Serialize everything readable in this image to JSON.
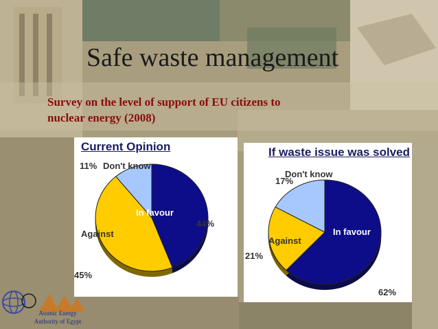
{
  "slide": {
    "title": "Safe waste management",
    "subtitle_line1": "Survey on the level of support of EU citizens to",
    "subtitle_line2": "nuclear energy (2008)",
    "logo_line1": "Atomic Energy",
    "logo_line2": "Authority of Egypt"
  },
  "colors": {
    "in_favour": "#0d0d8a",
    "against": "#ffcc00",
    "dont_know": "#a6c8ff"
  },
  "chart_data": [
    {
      "type": "pie",
      "title": "Current Opinion",
      "slices": [
        {
          "label": "In favour",
          "value": 44,
          "value_label": "44%"
        },
        {
          "label": "Against",
          "value": 45,
          "value_label": "45%"
        },
        {
          "label": "Don't know",
          "value": 11,
          "value_label": "11%"
        }
      ]
    },
    {
      "type": "pie",
      "title": "If waste issue was solved",
      "slices": [
        {
          "label": "In favour",
          "value": 62,
          "value_label": "62%"
        },
        {
          "label": "Against",
          "value": 21,
          "value_label": "21%"
        },
        {
          "label": "Don't know",
          "value": 17,
          "value_label": "17%"
        }
      ]
    }
  ]
}
